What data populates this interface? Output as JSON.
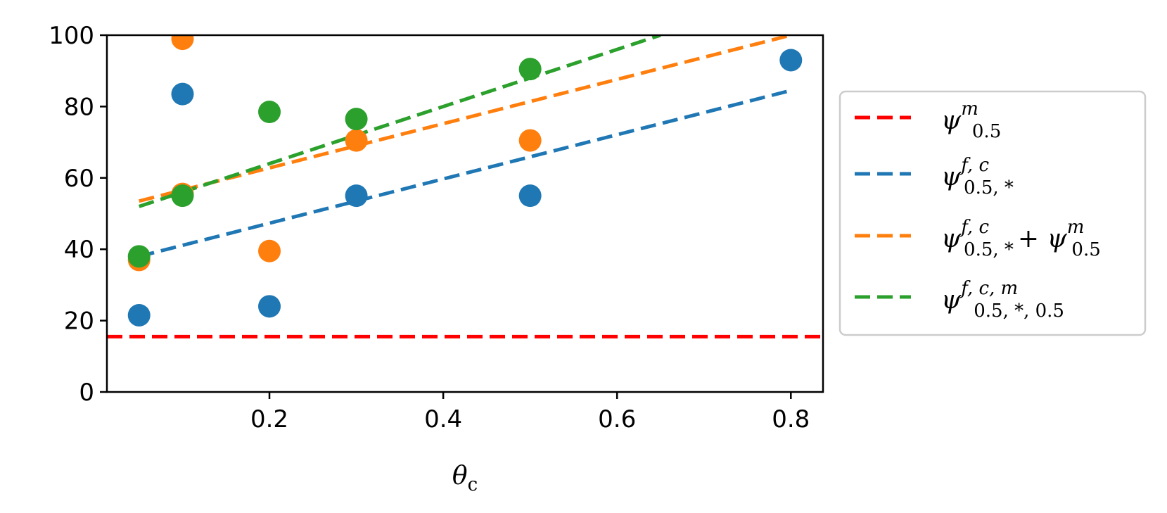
{
  "chart_data": {
    "type": "scatter",
    "xlabel": "θc",
    "ylabel": "",
    "xlim": [
      0.013,
      0.837
    ],
    "ylim": [
      0,
      100
    ],
    "xticks": [
      0.2,
      0.4,
      0.6,
      0.8
    ],
    "xtick_labels": [
      "0.2",
      "0.4",
      "0.6",
      "0.8"
    ],
    "yticks": [
      0,
      20,
      40,
      60,
      80,
      100
    ],
    "ytick_labels": [
      "0",
      "20",
      "40",
      "60",
      "80",
      "100"
    ],
    "grid": false,
    "legend_placement": "outside-right",
    "legend": [
      {
        "name": "ψ^m_0.5",
        "main": "ψ",
        "sup": "m",
        "sub": "0.5",
        "extra": "",
        "color": "#ff0000"
      },
      {
        "name": "ψ^{f,c}_{0.5,*}",
        "main": "ψ",
        "sup": "f, c",
        "sub": "0.5, *",
        "extra": "",
        "color": "#1f77b4"
      },
      {
        "name": "ψ^{f,c}_{0.5,*} + ψ^m_0.5",
        "main": "ψ",
        "sup": "f, c",
        "sub": "0.5, *",
        "extra": "+ ψ",
        "extra_sup": "m",
        "extra_sub": "0.5",
        "color": "#ff7f0e"
      },
      {
        "name": "ψ^{f,c,m}_{0.5,*,0.5}",
        "main": "ψ",
        "sup": "f, c, m",
        "sub": "0.5, *, 0.5",
        "extra": "",
        "color": "#2ca02c"
      }
    ],
    "series": [
      {
        "key": "blue",
        "color": "#1f77b4",
        "points": [
          [
            0.05,
            21.5
          ],
          [
            0.1,
            83.5
          ],
          [
            0.2,
            24
          ],
          [
            0.3,
            55
          ],
          [
            0.5,
            55
          ],
          [
            0.8,
            93
          ]
        ],
        "fit": [
          [
            0.05,
            38
          ],
          [
            0.8,
            84.5
          ]
        ]
      },
      {
        "key": "orange",
        "color": "#ff7f0e",
        "points": [
          [
            0.05,
            37
          ],
          [
            0.1,
            99
          ],
          [
            0.1,
            55.5
          ],
          [
            0.2,
            39.5
          ],
          [
            0.3,
            70.5
          ],
          [
            0.5,
            70.5
          ]
        ],
        "fit": [
          [
            0.05,
            53.5
          ],
          [
            0.8,
            100
          ]
        ]
      },
      {
        "key": "green",
        "color": "#2ca02c",
        "points": [
          [
            0.05,
            38
          ],
          [
            0.1,
            55
          ],
          [
            0.2,
            78.5
          ],
          [
            0.3,
            76.5
          ],
          [
            0.5,
            90.5
          ]
        ],
        "fit": [
          [
            0.05,
            52
          ],
          [
            0.65,
            100
          ]
        ]
      }
    ],
    "hline": {
      "y": 15.5,
      "color": "#ff0000"
    }
  }
}
